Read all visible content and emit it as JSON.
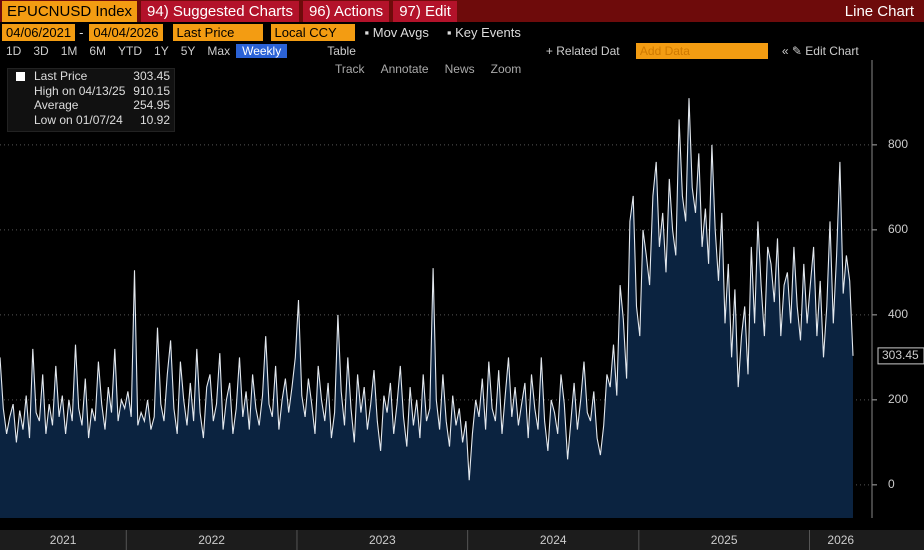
{
  "toolbar": {
    "ticker": "EPUCNUSD Index",
    "menus": [
      "94) Suggested Charts",
      "96) Actions",
      "97) Edit"
    ],
    "view": "Line Chart"
  },
  "controls": {
    "start": "04/06/2021",
    "end": "04/04/2026",
    "currency": "Local CCY",
    "toggles": [
      "Mov Avgs",
      "Key Events"
    ],
    "periods": [
      "1D",
      "3D",
      "1M",
      "6M",
      "YTD",
      "1Y",
      "5Y",
      "Max"
    ],
    "frequency": "Weekly",
    "table": "Table",
    "related": "Related Dat",
    "add_data": "Add Data",
    "edit_chart": "Edit Chart",
    "tools": [
      "Track",
      "Annotate",
      "News",
      "Zoom"
    ]
  },
  "legend": {
    "high": "High on 04/13/25",
    "average": "Average",
    "average_value": 254.95,
    "low": "Low on 01/07/24"
  },
  "chart_data": {
    "type": "line",
    "series": [
      {
        "name": "Last Price",
        "color": "#e3e8ee",
        "fill": "#0b2340",
        "values": [
          300,
          180,
          120,
          160,
          190,
          100,
          175,
          130,
          210,
          110,
          320,
          170,
          150,
          260,
          120,
          190,
          140,
          280,
          160,
          210,
          120,
          200,
          150,
          330,
          180,
          140,
          250,
          110,
          180,
          150,
          290,
          190,
          130,
          230,
          170,
          320,
          150,
          200,
          180,
          220,
          160,
          505,
          140,
          170,
          150,
          200,
          130,
          160,
          370,
          190,
          150,
          260,
          340,
          180,
          120,
          290,
          200,
          140,
          240,
          150,
          320,
          170,
          110,
          230,
          260,
          150,
          190,
          310,
          130,
          200,
          240,
          120,
          180,
          300,
          160,
          220,
          130,
          260,
          180,
          140,
          210,
          350,
          190,
          160,
          280,
          130,
          200,
          250,
          170,
          230,
          300,
          435,
          210,
          160,
          250,
          190,
          120,
          280,
          200,
          150,
          240,
          110,
          170,
          400,
          220,
          140,
          300,
          180,
          100,
          260,
          170,
          230,
          130,
          190,
          270,
          150,
          80,
          210,
          170,
          240,
          120,
          190,
          280,
          160,
          90,
          230,
          140,
          200,
          110,
          260,
          150,
          180,
          510,
          200,
          130,
          260,
          150,
          90,
          210,
          140,
          180,
          100,
          150,
          10.92,
          120,
          200,
          160,
          250,
          130,
          290,
          180,
          150,
          270,
          120,
          210,
          300,
          160,
          230,
          140,
          190,
          240,
          110,
          260,
          180,
          130,
          300,
          150,
          80,
          200,
          170,
          120,
          260,
          190,
          60,
          150,
          240,
          130,
          200,
          290,
          170,
          150,
          220,
          110,
          70,
          140,
          260,
          230,
          330,
          210,
          470,
          390,
          250,
          620,
          680,
          420,
          350,
          600,
          540,
          470,
          680,
          760,
          560,
          640,
          500,
          720,
          600,
          540,
          860,
          680,
          620,
          910.15,
          700,
          640,
          780,
          560,
          650,
          520,
          800,
          600,
          480,
          640,
          380,
          520,
          300,
          460,
          230,
          350,
          420,
          260,
          560,
          380,
          620,
          470,
          350,
          560,
          520,
          430,
          580,
          350,
          470,
          500,
          380,
          560,
          420,
          340,
          520,
          380,
          470,
          560,
          350,
          480,
          300,
          420,
          620,
          380,
          540,
          760,
          450,
          540,
          480,
          303.45
        ]
      }
    ],
    "ylim": [
      -78,
      995
    ],
    "yticks": [
      0,
      200,
      400,
      600,
      800
    ],
    "xticks": [
      2021,
      2022,
      2023,
      2024,
      2025,
      2026
    ],
    "grid": true
  }
}
